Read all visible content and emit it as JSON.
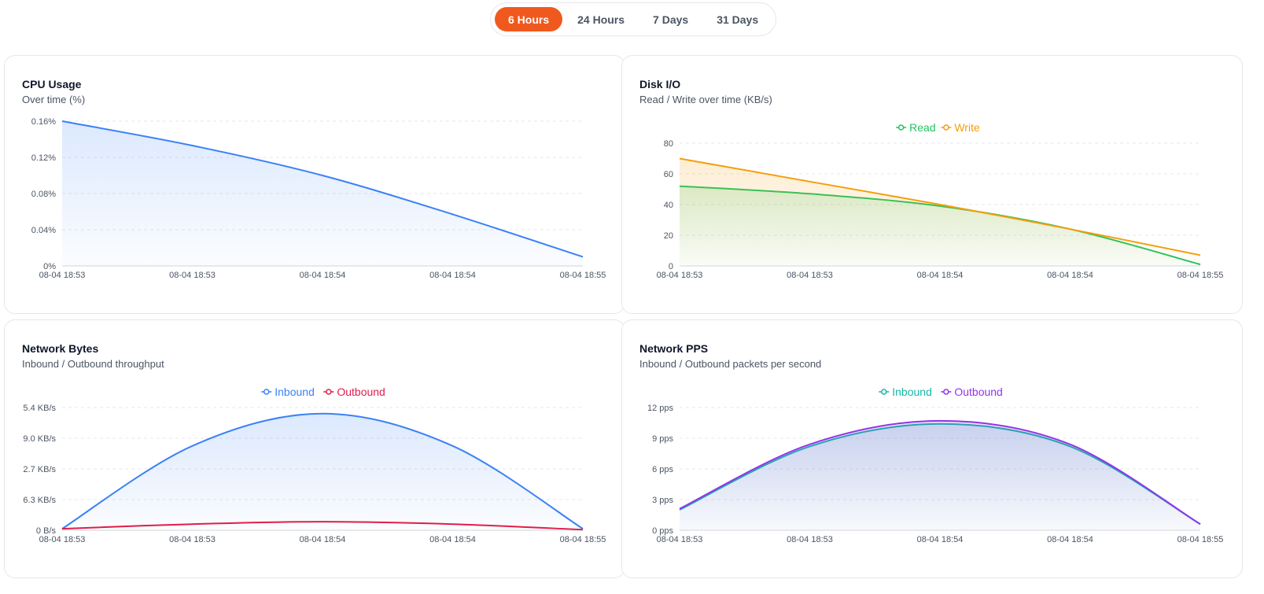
{
  "range_switch": {
    "options": [
      "6 Hours",
      "24 Hours",
      "7 Days",
      "31 Days"
    ],
    "active_index": 0,
    "accent": "#f0591e"
  },
  "cards": {
    "cpu": {
      "title": "CPU Usage",
      "subtitle": "Over time (%)"
    },
    "disk": {
      "title": "Disk I/O",
      "subtitle": "Read / Write over time (KB/s)"
    },
    "net_bytes": {
      "title": "Network Bytes",
      "subtitle": "Inbound / Outbound throughput"
    },
    "net_pps": {
      "title": "Network PPS",
      "subtitle": "Inbound / Outbound packets per second"
    }
  },
  "chart_data": [
    {
      "id": "cpu",
      "type": "area",
      "title": "CPU Usage",
      "subtitle": "Over time (%)",
      "x_labels": [
        "08-04 18:53",
        "08-04 18:53",
        "08-04 18:54",
        "08-04 18:54",
        "08-04 18:55"
      ],
      "y_ticks": [
        "0.16%",
        "0.12%",
        "0.08%",
        "0.04%",
        "0%"
      ],
      "ylim": [
        0,
        0.16
      ],
      "x": [
        0,
        0.25,
        0.5,
        0.75,
        1
      ],
      "legend": false,
      "grid": true,
      "series": [
        {
          "values": [
            0.16,
            0.133,
            0.1,
            0.057,
            0.01
          ],
          "color": "#3b82f6",
          "fill": true
        }
      ]
    },
    {
      "id": "disk",
      "type": "area",
      "title": "Disk I/O",
      "subtitle": "Read / Write over time (KB/s)",
      "x_labels": [
        "08-04 18:53",
        "08-04 18:53",
        "08-04 18:54",
        "08-04 18:54",
        "08-04 18:55"
      ],
      "y_ticks": [
        "80",
        "60",
        "40",
        "20",
        "0"
      ],
      "ylim": [
        0,
        80
      ],
      "x": [
        0,
        0.25,
        0.5,
        0.75,
        1
      ],
      "legend": true,
      "legend_position": "top-center",
      "grid": true,
      "series": [
        {
          "name": "Read",
          "values": [
            52,
            47,
            39,
            24,
            1
          ],
          "color": "#22c55e",
          "fill": true
        },
        {
          "name": "Write",
          "values": [
            70,
            55,
            40,
            24,
            7
          ],
          "color": "#f59e0b",
          "fill": true
        }
      ]
    },
    {
      "id": "net_bytes",
      "type": "area",
      "title": "Network Bytes",
      "subtitle": "Inbound / Outbound throughput",
      "x_labels": [
        "08-04 18:53",
        "08-04 18:53",
        "08-04 18:54",
        "08-04 18:54",
        "08-04 18:55"
      ],
      "y_ticks": [
        "5.4 KB/s",
        "9.0 KB/s",
        "2.7 KB/s",
        "6.3 KB/s",
        "0 B/s"
      ],
      "ylim": [
        0,
        4
      ],
      "x": [
        0,
        0.25,
        0.5,
        0.75,
        1
      ],
      "legend": true,
      "legend_position": "top-center",
      "grid": true,
      "series": [
        {
          "name": "Inbound",
          "values": [
            0.05,
            2.75,
            3.8,
            2.75,
            0.05
          ],
          "color": "#3b82f6",
          "fill": true
        },
        {
          "name": "Outbound",
          "values": [
            0.05,
            0.2,
            0.28,
            0.2,
            0.02
          ],
          "color": "#e11d48",
          "fill": false
        }
      ]
    },
    {
      "id": "net_pps",
      "type": "area",
      "title": "Network PPS",
      "subtitle": "Inbound / Outbound packets per second",
      "x_labels": [
        "08-04 18:53",
        "08-04 18:53",
        "08-04 18:54",
        "08-04 18:54",
        "08-04 18:55"
      ],
      "y_ticks": [
        "12 pps",
        "9 pps",
        "6 pps",
        "3 pps",
        "0 pps"
      ],
      "ylim": [
        0,
        12
      ],
      "x": [
        0,
        0.25,
        0.5,
        0.75,
        1
      ],
      "legend": true,
      "legend_position": "top-center",
      "grid": true,
      "series": [
        {
          "name": "Inbound",
          "values": [
            2,
            8.2,
            10.4,
            8.2,
            0.6
          ],
          "color": "#14b8a6",
          "fill": true
        },
        {
          "name": "Outbound",
          "values": [
            2.1,
            8.4,
            10.7,
            8.4,
            0.6
          ],
          "color": "#9333ea",
          "fill": true
        }
      ]
    }
  ]
}
